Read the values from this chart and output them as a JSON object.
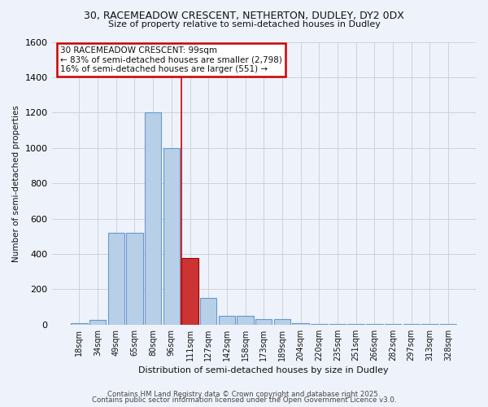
{
  "title_line1": "30, RACEMEADOW CRESCENT, NETHERTON, DUDLEY, DY2 0DX",
  "title_line2": "Size of property relative to semi-detached houses in Dudley",
  "xlabel": "Distribution of semi-detached houses by size in Dudley",
  "ylabel": "Number of semi-detached properties",
  "bin_labels": [
    "18sqm",
    "34sqm",
    "49sqm",
    "65sqm",
    "80sqm",
    "96sqm",
    "111sqm",
    "127sqm",
    "142sqm",
    "158sqm",
    "173sqm",
    "189sqm",
    "204sqm",
    "220sqm",
    "235sqm",
    "251sqm",
    "266sqm",
    "282sqm",
    "297sqm",
    "313sqm",
    "328sqm"
  ],
  "bar_values": [
    10,
    25,
    520,
    520,
    1200,
    1000,
    375,
    150,
    50,
    50,
    30,
    30,
    10,
    5,
    3,
    3,
    2,
    2,
    2,
    2,
    2
  ],
  "highlight_index": 6,
  "bar_color_normal": "#b8cfe8",
  "bar_color_highlight": "#cc3333",
  "bar_edge_color": "#6699cc",
  "highlight_edge_color": "#990000",
  "vline_color": "#cc0000",
  "annotation_text": "30 RACEMEADOW CRESCENT: 99sqm\n← 83% of semi-detached houses are smaller (2,798)\n16% of semi-detached houses are larger (551) →",
  "annotation_box_facecolor": "#ffffff",
  "annotation_box_edgecolor": "#cc0000",
  "ylim": [
    0,
    1600
  ],
  "yticks": [
    0,
    200,
    400,
    600,
    800,
    1000,
    1200,
    1400,
    1600
  ],
  "footer_line1": "Contains HM Land Registry data © Crown copyright and database right 2025.",
  "footer_line2": "Contains public sector information licensed under the Open Government Licence v3.0.",
  "background_color": "#eef2fb"
}
